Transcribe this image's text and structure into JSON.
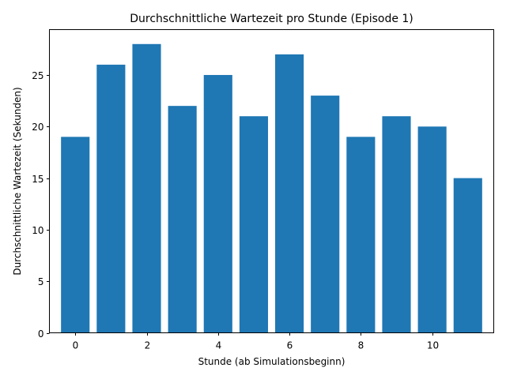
{
  "chart_data": {
    "type": "bar",
    "title": "Durchschnittliche Wartezeit pro Stunde (Episode 1)",
    "xlabel": "Stunde (ab Simulationsbeginn)",
    "ylabel": "Durchschnittliche Wartezeit (Sekunden)",
    "x": [
      0,
      1,
      2,
      3,
      4,
      5,
      6,
      7,
      8,
      9,
      10,
      11
    ],
    "values": [
      19,
      26,
      28,
      22,
      25,
      21,
      27,
      23,
      19,
      21,
      20,
      15
    ],
    "xlim": [
      -0.725,
      11.725
    ],
    "ylim": [
      0,
      29.4
    ],
    "xticks": [
      0,
      2,
      4,
      6,
      8,
      10
    ],
    "yticks": [
      0,
      5,
      10,
      15,
      20,
      25
    ],
    "bar_width": 0.8,
    "grid": false,
    "legend": "none",
    "bar_color": "#1f77b4"
  }
}
